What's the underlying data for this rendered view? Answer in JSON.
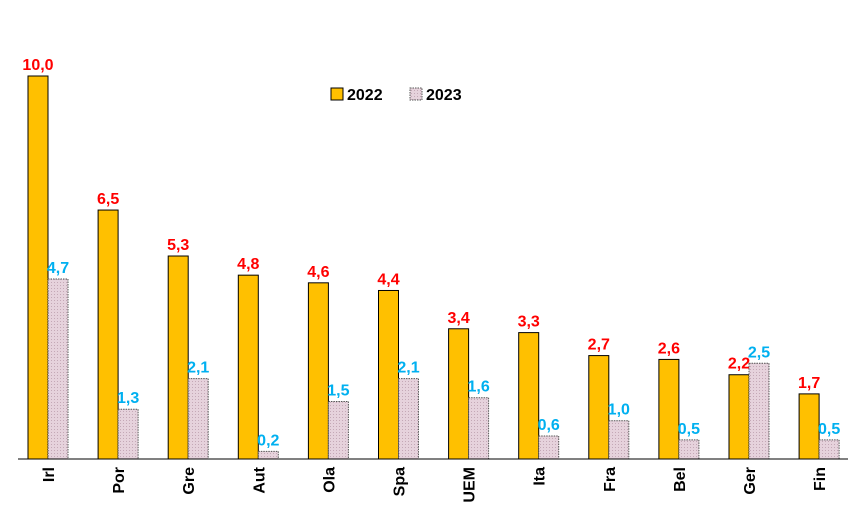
{
  "chart_data": {
    "type": "bar",
    "categories": [
      "Irl",
      "Por",
      "Gre",
      "Aut",
      "Ola",
      "Spa",
      "UEM",
      "Ita",
      "Fra",
      "Bel",
      "Ger",
      "Fin"
    ],
    "series": [
      {
        "name": "2022",
        "values": [
          10.0,
          6.5,
          5.3,
          4.8,
          4.6,
          4.4,
          3.4,
          3.3,
          2.7,
          2.6,
          2.2,
          1.7
        ],
        "labels": [
          "10,0",
          "6,5",
          "5,3",
          "4,8",
          "4,6",
          "4,4",
          "3,4",
          "3,3",
          "2,7",
          "2,6",
          "2,2",
          "1,7"
        ],
        "color": "#FFC000",
        "label_color": "#FF0000"
      },
      {
        "name": "2023",
        "values": [
          4.7,
          1.3,
          2.1,
          0.2,
          1.5,
          2.1,
          1.6,
          0.6,
          1.0,
          0.5,
          2.5,
          0.5
        ],
        "labels": [
          "4,7",
          "1,3",
          "2,1",
          "0,2",
          "1,5",
          "2,1",
          "1,6",
          "0,6",
          "1,0",
          "0,5",
          "2,5",
          "0,5"
        ],
        "color": "#E6D2DC",
        "label_color": "#00B0F0"
      }
    ],
    "ylim": [
      0,
      10
    ],
    "legend_position": "top-center",
    "grid": false
  }
}
